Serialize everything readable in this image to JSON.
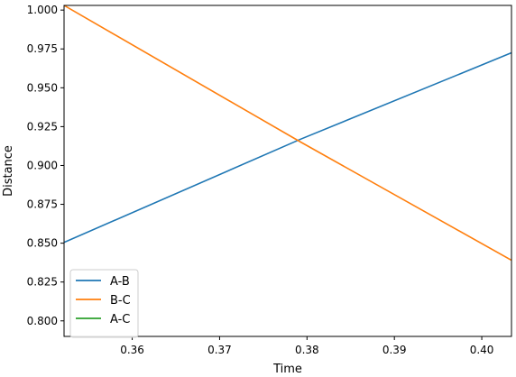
{
  "chart_data": {
    "type": "line",
    "title": "",
    "xlabel": "Time",
    "ylabel": "Distance",
    "xlim": [
      0.3522,
      0.4034
    ],
    "ylim": [
      0.79,
      1.003
    ],
    "xticks": [
      0.36,
      0.37,
      0.38,
      0.39,
      0.4
    ],
    "xtick_labels": [
      "0.36",
      "0.37",
      "0.38",
      "0.39",
      "0.40"
    ],
    "yticks": [
      0.8,
      0.825,
      0.85,
      0.875,
      0.9,
      0.925,
      0.95,
      0.975,
      1.0
    ],
    "ytick_labels": [
      "0.800",
      "0.825",
      "0.850",
      "0.875",
      "0.900",
      "0.925",
      "0.950",
      "0.975",
      "1.000"
    ],
    "grid": false,
    "legend_position": "lower-left",
    "series": [
      {
        "name": "A-B",
        "color": "#1f77b4",
        "x": [
          0.3522,
          0.3793,
          0.4034
        ],
        "y": [
          0.8505,
          0.917,
          0.9725
        ]
      },
      {
        "name": "B-C",
        "color": "#ff7f0e",
        "x": [
          0.3522,
          0.3793,
          0.4034
        ],
        "y": [
          1.003,
          0.915,
          0.839
        ]
      },
      {
        "name": "A-C",
        "color": "#2ca02c",
        "x": [],
        "y": []
      }
    ]
  }
}
